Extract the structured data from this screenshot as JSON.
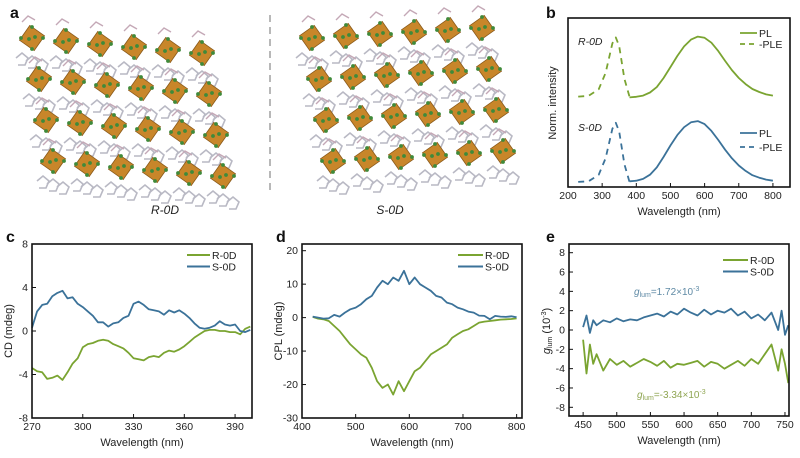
{
  "colors": {
    "r_0d": "#7aa431",
    "s_0d": "#3b7299",
    "octahedron": "#c8862a",
    "halide": "#3f8a3a",
    "annot_s": "#5f8aa5",
    "annot_r": "#8fa552"
  },
  "panel_a": {
    "label": "a",
    "left_caption": "R-0D",
    "right_caption": "S-0D"
  },
  "chart_data": [
    {
      "panel": "b",
      "type": "line",
      "xlabel": "Wavelength (nm)",
      "ylabel": "Norm. intensity",
      "xlim": [
        200,
        850
      ],
      "ylim": [
        0,
        1
      ],
      "xticks": [
        200,
        300,
        400,
        500,
        600,
        700,
        800
      ],
      "yticks": [],
      "grid": false,
      "annotations": [
        "R-0D",
        "S-0D"
      ],
      "legend": {
        "placement": "right",
        "groups": [
          [
            "PL",
            "-PLE"
          ],
          [
            "PL",
            "-PLE"
          ]
        ]
      },
      "series": [
        {
          "sample": "R-0D",
          "name": "PL",
          "style": "solid",
          "x": [
            380,
            400,
            420,
            440,
            460,
            480,
            500,
            520,
            540,
            560,
            580,
            600,
            620,
            640,
            660,
            680,
            700,
            720,
            740,
            760,
            780,
            800
          ],
          "y": [
            0.53,
            0.534,
            0.541,
            0.559,
            0.591,
            0.645,
            0.71,
            0.775,
            0.832,
            0.872,
            0.89,
            0.883,
            0.854,
            0.804,
            0.746,
            0.692,
            0.645,
            0.609,
            0.58,
            0.562,
            0.548,
            0.541
          ]
        },
        {
          "sample": "R-0D",
          "name": "-PLE",
          "style": "dashed",
          "x": [
            230,
            260,
            290,
            310,
            330,
            340,
            350,
            365,
            380
          ],
          "y": [
            0.535,
            0.539,
            0.578,
            0.675,
            0.85,
            0.885,
            0.833,
            0.64,
            0.535
          ]
        },
        {
          "sample": "S-0D",
          "name": "PL",
          "style": "solid",
          "x": [
            380,
            400,
            420,
            440,
            460,
            480,
            500,
            520,
            540,
            560,
            580,
            600,
            620,
            640,
            660,
            680,
            700,
            720,
            740,
            760,
            780,
            800
          ],
          "y": [
            0.034,
            0.037,
            0.048,
            0.073,
            0.116,
            0.178,
            0.246,
            0.307,
            0.354,
            0.383,
            0.39,
            0.372,
            0.332,
            0.278,
            0.221,
            0.17,
            0.127,
            0.095,
            0.07,
            0.055,
            0.044,
            0.037
          ]
        },
        {
          "sample": "S-0D",
          "name": "-PLE",
          "style": "dashed",
          "x": [
            230,
            260,
            290,
            310,
            330,
            340,
            350,
            365,
            380
          ],
          "y": [
            0.03,
            0.034,
            0.072,
            0.17,
            0.345,
            0.38,
            0.328,
            0.135,
            0.03
          ]
        }
      ]
    },
    {
      "panel": "c",
      "type": "line",
      "xlabel": "Wavelength (nm)",
      "ylabel": "CD (mdeg)",
      "xlim": [
        270,
        400
      ],
      "ylim": [
        -8,
        8
      ],
      "xticks": [
        270,
        300,
        330,
        360,
        390
      ],
      "yticks": [
        -8,
        -4,
        0,
        4,
        8
      ],
      "grid": false,
      "legend": {
        "placement": "top-right"
      },
      "series": [
        {
          "name": "R-0D",
          "x": [
            270,
            273,
            276,
            279,
            282,
            285,
            288,
            291,
            294,
            297,
            300,
            303,
            306,
            309,
            312,
            315,
            318,
            321,
            324,
            327,
            330,
            333,
            336,
            339,
            342,
            345,
            348,
            351,
            354,
            357,
            360,
            363,
            366,
            369,
            372,
            375,
            378,
            381,
            384,
            387,
            390,
            393,
            396,
            399
          ],
          "y": [
            -3.4,
            -3.7,
            -3.8,
            -4.4,
            -4.3,
            -4.1,
            -4.5,
            -3.8,
            -3.0,
            -2.5,
            -1.5,
            -1.2,
            -1.1,
            -0.9,
            -0.8,
            -0.9,
            -1.2,
            -1.4,
            -1.6,
            -2.0,
            -2.5,
            -2.6,
            -2.7,
            -2.4,
            -2.3,
            -2.4,
            -2.0,
            -1.8,
            -1.9,
            -1.7,
            -1.4,
            -1.0,
            -0.6,
            -0.3,
            0.0,
            0.1,
            0.1,
            0.0,
            0.0,
            -0.1,
            -0.1,
            -0.3,
            0.2,
            0.4
          ]
        },
        {
          "name": "S-0D",
          "x": [
            270,
            273,
            276,
            279,
            282,
            285,
            288,
            291,
            294,
            297,
            300,
            303,
            306,
            309,
            312,
            315,
            318,
            321,
            324,
            327,
            330,
            333,
            336,
            339,
            342,
            345,
            348,
            351,
            354,
            357,
            360,
            363,
            366,
            369,
            372,
            375,
            378,
            381,
            384,
            387,
            390,
            393,
            396,
            399
          ],
          "y": [
            0.3,
            1.8,
            2.4,
            2.5,
            3.2,
            3.5,
            3.7,
            3.0,
            3.1,
            2.5,
            2.2,
            1.8,
            1.4,
            0.8,
            0.8,
            0.4,
            0.7,
            0.8,
            1.2,
            1.4,
            2.5,
            2.7,
            2.4,
            2.0,
            1.9,
            1.8,
            1.5,
            1.9,
            1.7,
            1.9,
            1.6,
            1.2,
            0.7,
            0.3,
            0.2,
            0.3,
            0.5,
            0.9,
            0.6,
            0.5,
            0.6,
            0.0,
            -0.1,
            0.1
          ]
        }
      ]
    },
    {
      "panel": "d",
      "type": "line",
      "xlabel": "Wavelength (nm)",
      "ylabel": "CPL (mdeg)",
      "xlim": [
        400,
        810
      ],
      "ylim": [
        -30,
        22
      ],
      "xticks": [
        400,
        500,
        600,
        700,
        800
      ],
      "yticks": [
        -30,
        -20,
        -10,
        0,
        10,
        20
      ],
      "grid": false,
      "legend": {
        "placement": "top-right"
      },
      "series": [
        {
          "name": "R-0D",
          "x": [
            420,
            430,
            440,
            450,
            460,
            470,
            480,
            490,
            500,
            510,
            520,
            530,
            540,
            550,
            560,
            570,
            580,
            590,
            600,
            610,
            620,
            630,
            640,
            650,
            660,
            670,
            680,
            690,
            700,
            710,
            720,
            730,
            740,
            750,
            760,
            770,
            780,
            790,
            800
          ],
          "y": [
            0.2,
            -0.3,
            -0.5,
            -1,
            -2.5,
            -4,
            -6,
            -8,
            -9.5,
            -11,
            -12,
            -15,
            -19,
            -21,
            -20,
            -23,
            -19,
            -22,
            -19,
            -16,
            -15,
            -13,
            -11,
            -10,
            -9,
            -8,
            -6,
            -5,
            -4,
            -3.5,
            -2.5,
            -1.5,
            -1.2,
            -1,
            -0.8,
            -0.6,
            -0.5,
            -0.4,
            -0.2
          ]
        },
        {
          "name": "S-0D",
          "x": [
            420,
            430,
            440,
            450,
            460,
            470,
            480,
            490,
            500,
            510,
            520,
            530,
            540,
            550,
            560,
            570,
            580,
            590,
            600,
            610,
            620,
            630,
            640,
            650,
            660,
            670,
            680,
            690,
            700,
            710,
            720,
            730,
            740,
            750,
            760,
            770,
            780,
            790,
            800
          ],
          "y": [
            0.3,
            0,
            -0.3,
            -0.2,
            0.8,
            0.3,
            1.5,
            2.5,
            3,
            4,
            5.5,
            6.5,
            9,
            11,
            10,
            12,
            11,
            14,
            10,
            12,
            10,
            9,
            8,
            6.5,
            6,
            4.5,
            4,
            3,
            2.5,
            1.8,
            1.5,
            0.6,
            0.5,
            -0.5,
            0.5,
            0.3,
            0.2,
            0.4,
            0.1
          ]
        }
      ]
    },
    {
      "panel": "e",
      "type": "line",
      "xlabel": "Wavelength (nm)",
      "ylabel_symbol": "g",
      "ylabel_sub": "lum",
      "ylabel_unit": " (10",
      "ylabel_exp": "-3",
      "ylabel_close": ")",
      "xlim": [
        429,
        756
      ],
      "ylim": [
        -8.9,
        8.9
      ],
      "xticks": [
        450,
        500,
        550,
        600,
        650,
        700,
        750
      ],
      "yticks": [
        -8,
        -6,
        -4,
        -2,
        0,
        2,
        4,
        6,
        8
      ],
      "grid": false,
      "legend": {
        "placement": "top-right"
      },
      "annotations": [
        {
          "symbol": "g",
          "sub": "lum",
          "value": "=1.72×10",
          "exp": "-3"
        },
        {
          "symbol": "g",
          "sub": "lum",
          "value": "=-3.34×10",
          "exp": "-3"
        }
      ],
      "series": [
        {
          "name": "R-0D",
          "x": [
            450,
            455,
            460,
            465,
            470,
            480,
            490,
            500,
            510,
            520,
            530,
            540,
            550,
            560,
            570,
            580,
            590,
            600,
            610,
            620,
            630,
            640,
            650,
            660,
            670,
            680,
            690,
            700,
            710,
            720,
            730,
            740,
            745,
            750,
            755
          ],
          "y": [
            -1,
            -4.5,
            -1.5,
            -3.5,
            -2.5,
            -4.2,
            -3,
            -3.6,
            -3.2,
            -3.8,
            -3.4,
            -3.0,
            -3.3,
            -3.7,
            -3.2,
            -3.9,
            -3.5,
            -3.6,
            -3.4,
            -3.2,
            -3.8,
            -3.3,
            -3.5,
            -4.0,
            -3.6,
            -3.2,
            -3.7,
            -3.0,
            -3.5,
            -2.5,
            -1.5,
            -4.2,
            -2.0,
            -3.5,
            -5.5
          ]
        },
        {
          "name": "S-0D",
          "x": [
            450,
            455,
            460,
            465,
            470,
            480,
            490,
            500,
            510,
            520,
            530,
            540,
            550,
            560,
            570,
            580,
            590,
            600,
            610,
            620,
            630,
            640,
            650,
            660,
            670,
            680,
            690,
            700,
            710,
            720,
            730,
            740,
            745,
            750,
            755
          ],
          "y": [
            0.3,
            1.5,
            -0.3,
            1.0,
            0.5,
            1,
            0.8,
            1.2,
            0.9,
            1.1,
            1.0,
            1.3,
            1.5,
            1.7,
            1.4,
            1.9,
            1.6,
            2.2,
            1.8,
            1.5,
            2.1,
            1.6,
            2.0,
            1.8,
            2.2,
            1.5,
            1.9,
            1.2,
            1.6,
            1.0,
            1.8,
            0.0,
            2.0,
            -0.5,
            0.5
          ]
        }
      ]
    }
  ],
  "panel_labels": {
    "b": "b",
    "c": "c",
    "d": "d",
    "e": "e"
  }
}
